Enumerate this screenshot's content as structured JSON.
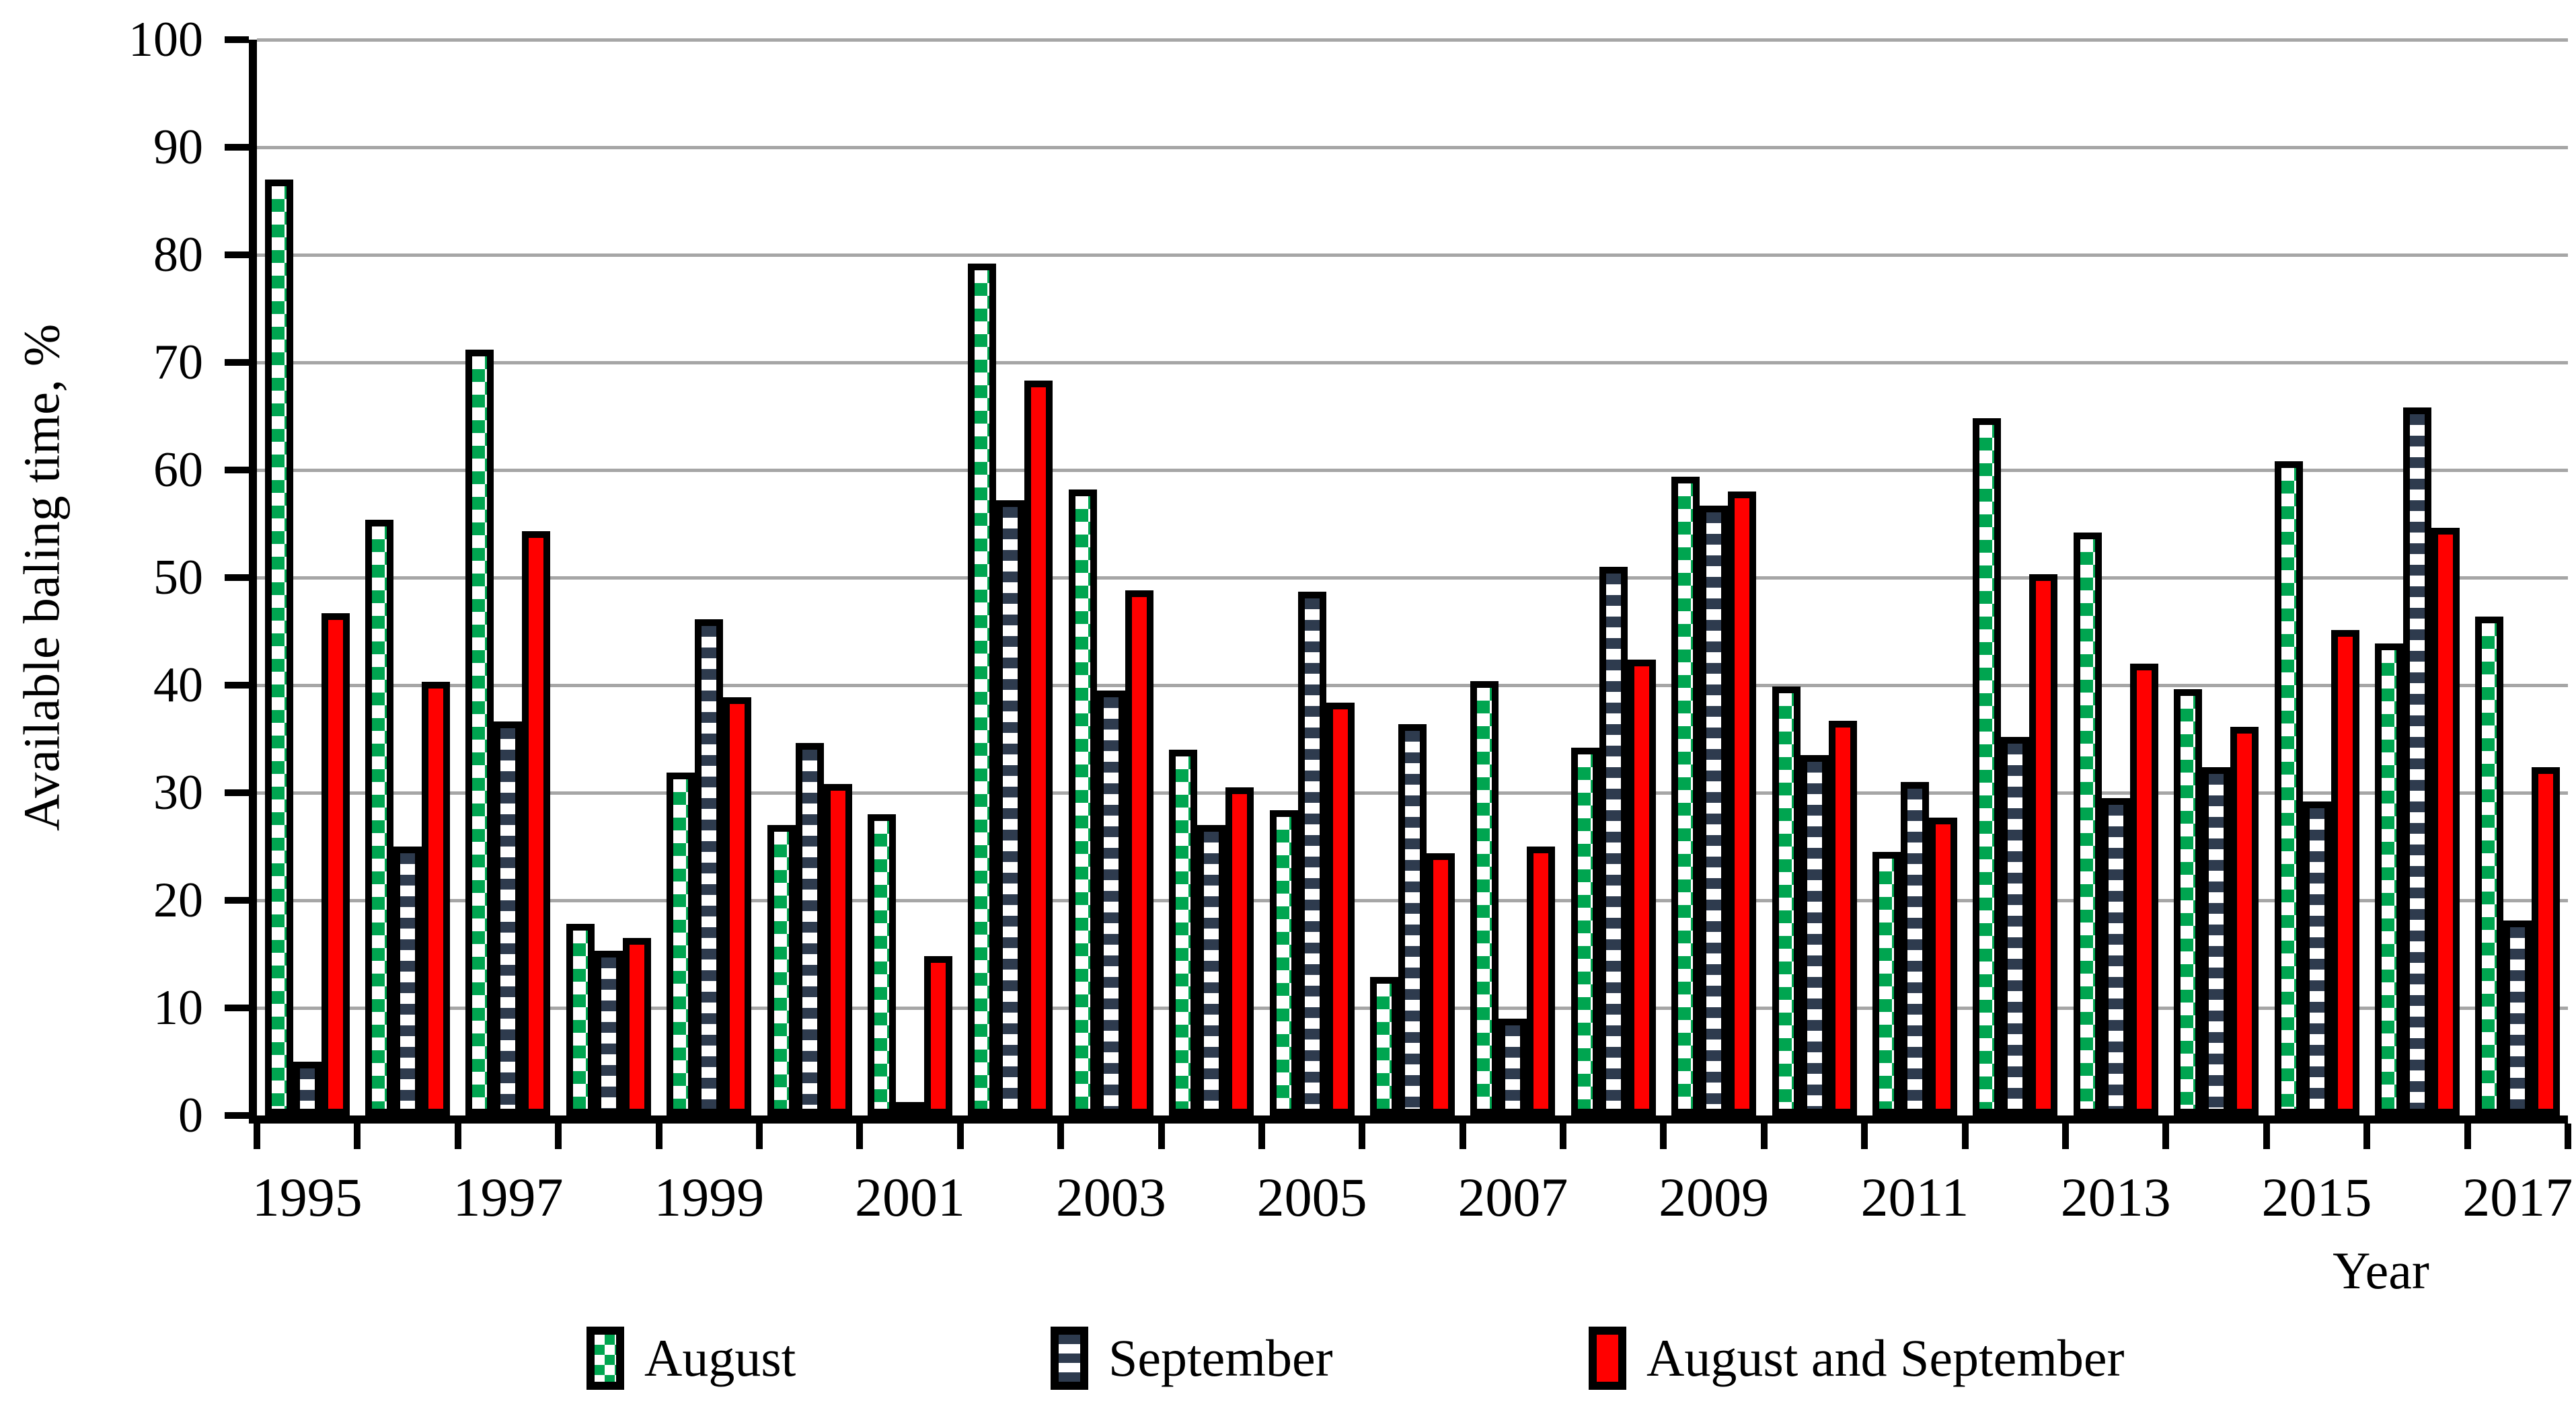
{
  "figure": {
    "background": "#FFFFFF",
    "axis_color": "#000000",
    "gridline_color": "#A6A6A6"
  },
  "chart_data": {
    "type": "bar",
    "title": "",
    "xlabel": "Year",
    "ylabel": "Available baling time, %",
    "ylim": [
      0,
      100
    ],
    "y_ticks": [
      0,
      10,
      20,
      30,
      40,
      50,
      60,
      70,
      80,
      90,
      100
    ],
    "grid": "horizontal",
    "legend_position": "bottom",
    "categories": [
      1995,
      1996,
      1997,
      1998,
      1999,
      2000,
      2001,
      2002,
      2003,
      2004,
      2005,
      2006,
      2007,
      2008,
      2009,
      2010,
      2011,
      2012,
      2013,
      2014,
      2015,
      2016,
      2017
    ],
    "x_tick_labels": [
      "1995",
      "1997",
      "1999",
      "2001",
      "2003",
      "2005",
      "2007",
      "2009",
      "2011",
      "2013",
      "2015",
      "2017"
    ],
    "series": [
      {
        "name": "August",
        "pattern": "green-checker-dots",
        "color": "#00A550",
        "values": [
          87.0,
          55.4,
          71.2,
          17.8,
          31.9,
          27.0,
          28.0,
          79.2,
          58.2,
          34.0,
          28.4,
          12.9,
          40.4,
          34.2,
          59.4,
          39.9,
          24.5,
          64.8,
          54.2,
          39.6,
          60.8,
          43.9,
          46.4
        ]
      },
      {
        "name": "September",
        "pattern": "navy-horizontal-stripes",
        "color": "#2E3B4E",
        "values": [
          5.0,
          25.0,
          36.6,
          15.3,
          46.1,
          34.6,
          0.8,
          57.2,
          39.5,
          27.0,
          48.7,
          36.4,
          9.0,
          51.0,
          56.7,
          33.5,
          31.0,
          35.2,
          29.5,
          32.4,
          29.2,
          65.8,
          18.1
        ]
      },
      {
        "name": "August and September",
        "pattern": "solid-red",
        "color": "#FF0000",
        "values": [
          46.7,
          40.3,
          54.3,
          16.5,
          38.9,
          30.8,
          14.8,
          68.3,
          48.8,
          30.5,
          38.4,
          24.4,
          25.0,
          42.4,
          58.0,
          36.7,
          27.7,
          50.3,
          42.0,
          36.1,
          45.1,
          54.6,
          32.4
        ]
      }
    ]
  }
}
